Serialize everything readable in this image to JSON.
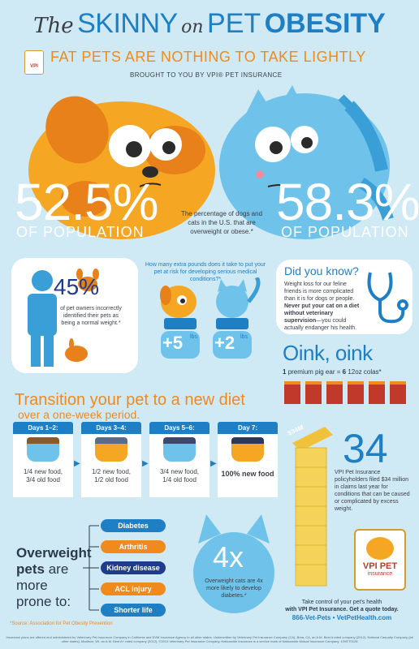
{
  "header": {
    "the": "The",
    "skinny": "SKINNY",
    "on": "on",
    "pet": "PET",
    "obesity": "OBESITY",
    "subtitle": "FAT PETS ARE NOTHING TO TAKE LIGHTLY",
    "byline": "BROUGHT TO YOU BY VPI® PET INSURANCE"
  },
  "stats": {
    "dogs_pct": "52.5%",
    "cats_pct": "58.3%",
    "pop_label": "OF POPULATION",
    "center_note": "The percentage of dogs and cats in the U.S. that are overweight or obese.*"
  },
  "owners": {
    "pct": "45%",
    "note": "of pet owners incorrectly identified their pets as being a normal weight.*"
  },
  "pounds": {
    "question": "How many extra pounds does it take to put your pet at risk for developing serious medical conditions?*",
    "dog_value": "+5",
    "cat_value": "+2",
    "unit": "lbs"
  },
  "did_you_know": {
    "title": "Did you know?",
    "body_1": "Weight loss for our feline friends is more complicated than it is for dogs or people.",
    "body_bold": "Never put your cat on a diet without veterinary supervision",
    "body_2": "—you could actually endanger his health."
  },
  "oink": {
    "title": "Oink, oink",
    "line_pre": "1",
    "line_mid": "premium pig ear =",
    "line_num": "6",
    "line_post": "12oz colas*"
  },
  "transition": {
    "title": "Transition your pet to a new diet",
    "subtitle": "over a one-week period.",
    "days": [
      {
        "label": "Days 1–2:",
        "text_1": "1/4 new food,",
        "text_2": "3/4 old food"
      },
      {
        "label": "Days 3–4:",
        "text_1": "1/2 new food,",
        "text_2": "1/2 old food"
      },
      {
        "label": "Days 5–6:",
        "text_1": "3/4 new food,",
        "text_2": "1/4 old food"
      },
      {
        "label": "Day 7:",
        "text_1": "100% new food",
        "text_2": ""
      }
    ]
  },
  "claims": {
    "money": "$34M",
    "number": "34",
    "note": "VPI Pet Insurance policyholders filed $34 million in claims last year for conditions that can be caused or complicated by excess weight."
  },
  "prone": {
    "line1": "Overweight",
    "line2a": "pets",
    "line2b": "are more",
    "line3": "prone to:",
    "conditions": [
      "Diabetes",
      "Arthritis",
      "Kidney disease",
      "ACL injury",
      "Shorter life"
    ]
  },
  "cats_risk": {
    "value": "4x",
    "note": "Overweight cats are 4x more likely to develop diabetes.*"
  },
  "logo": {
    "brand": "VPI PET",
    "sub": "insurance"
  },
  "cta": {
    "line1": "Take control of your pet's health",
    "line2": "with VPI Pet Insurance. Get a quote today.",
    "contact": "866-Vet-Pets • VetPetHealth.com"
  },
  "footer": {
    "source": "*Source: Association for Pet Obesity Prevention",
    "fine_print": "Insurance plans are offered and administered by Veterinary Pet Insurance Company in California and DVM Insurance Agency in all other states. Underwritten by Veterinary Pet Insurance Company (CA), Brea, CA, an A.M. Best A rated company (2012); National Casualty Company (all other states), Madison, WI, an A.M. Best A+ rated company (2012). ©2013 Veterinary Pet Insurance Company. Nationwide Insurance is a service mark of Nationwide Mutual Insurance Company. 13VET0128"
  },
  "colors": {
    "background": "#cfe9f5",
    "blue": "#1f7fc4",
    "orange": "#f08a1c",
    "dog": "#f5a623",
    "cat": "#6fc3ea"
  }
}
